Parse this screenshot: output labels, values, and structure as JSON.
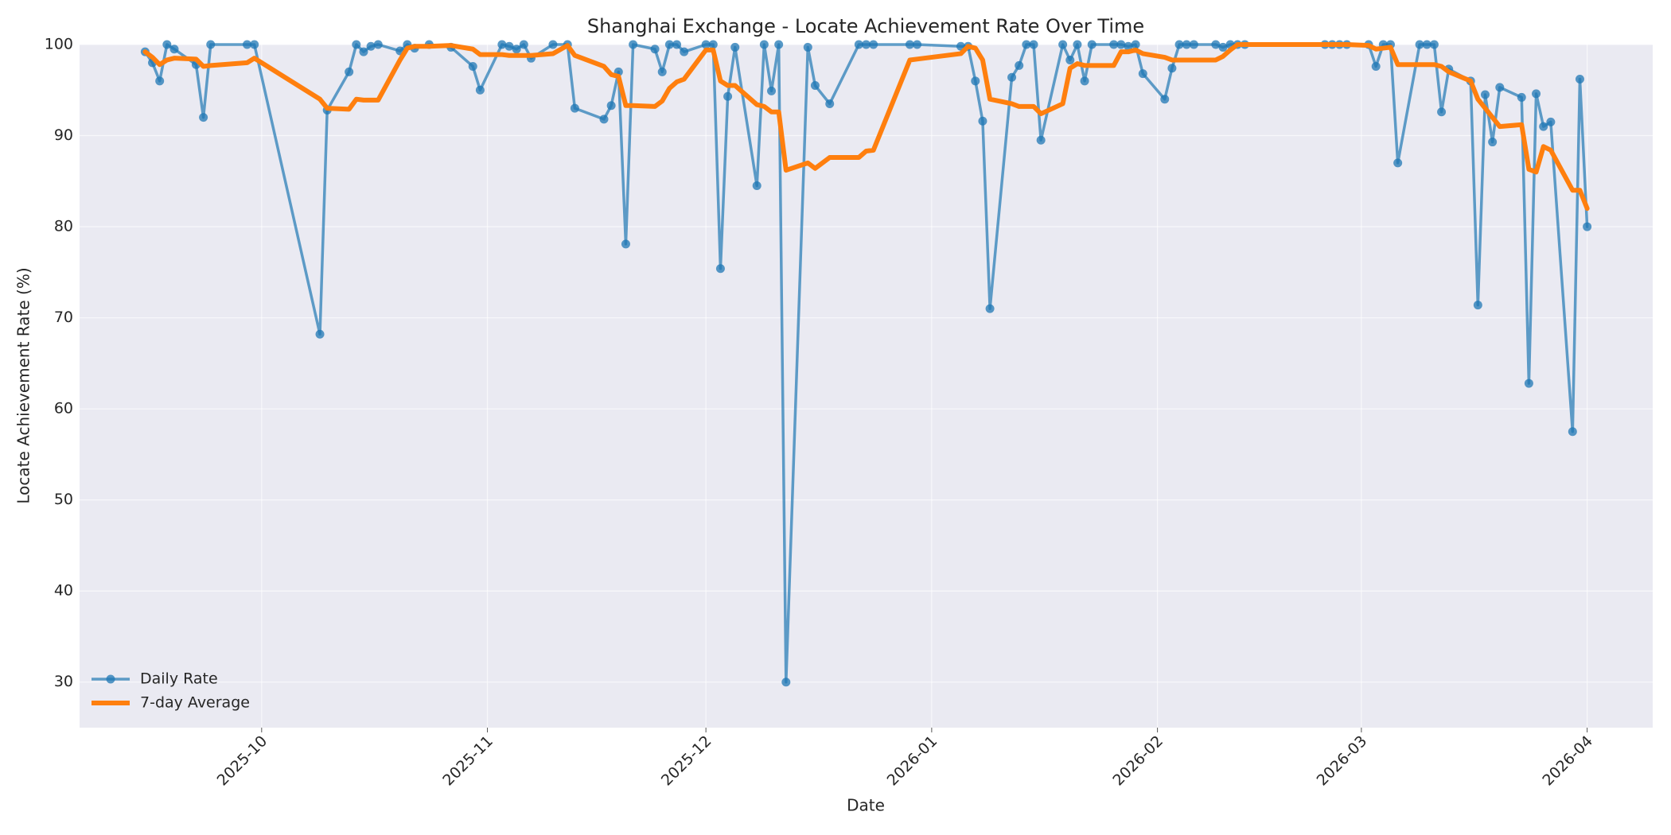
{
  "chart_data": {
    "type": "line",
    "title": "Shanghai Exchange - Locate Achievement Rate Over Time",
    "x_label": "Date",
    "y_label": "Locate Achievement Rate (%)",
    "x": [
      "2025-09-15",
      "2025-09-16",
      "2025-09-17",
      "2025-09-18",
      "2025-09-19",
      "2025-09-22",
      "2025-09-23",
      "2025-09-24",
      "2025-09-29",
      "2025-09-30",
      "2025-10-09",
      "2025-10-10",
      "2025-10-13",
      "2025-10-14",
      "2025-10-15",
      "2025-10-16",
      "2025-10-17",
      "2025-10-20",
      "2025-10-21",
      "2025-10-22",
      "2025-10-24",
      "2025-10-27",
      "2025-10-30",
      "2025-10-31",
      "2025-11-03",
      "2025-11-04",
      "2025-11-05",
      "2025-11-06",
      "2025-11-07",
      "2025-11-10",
      "2025-11-12",
      "2025-11-13",
      "2025-11-17",
      "2025-11-18",
      "2025-11-19",
      "2025-11-20",
      "2025-11-21",
      "2025-11-24",
      "2025-11-25",
      "2025-11-26",
      "2025-11-27",
      "2025-11-28",
      "2025-12-01",
      "2025-12-02",
      "2025-12-03",
      "2025-12-04",
      "2025-12-05",
      "2025-12-08",
      "2025-12-09",
      "2025-12-10",
      "2025-12-11",
      "2025-12-12",
      "2025-12-15",
      "2025-12-16",
      "2025-12-18",
      "2025-12-22",
      "2025-12-23",
      "2025-12-24",
      "2025-12-29",
      "2025-12-30",
      "2026-01-05",
      "2026-01-06",
      "2026-01-07",
      "2026-01-08",
      "2026-01-09",
      "2026-01-12",
      "2026-01-13",
      "2026-01-14",
      "2026-01-15",
      "2026-01-16",
      "2026-01-19",
      "2026-01-20",
      "2026-01-21",
      "2026-01-22",
      "2026-01-23",
      "2026-01-26",
      "2026-01-27",
      "2026-01-28",
      "2026-01-29",
      "2026-01-30",
      "2026-02-02",
      "2026-02-03",
      "2026-02-04",
      "2026-02-05",
      "2026-02-06",
      "2026-02-09",
      "2026-02-10",
      "2026-02-11",
      "2026-02-12",
      "2026-02-13",
      "2026-02-24",
      "2026-02-25",
      "2026-02-26",
      "2026-02-27",
      "2026-03-02",
      "2026-03-03",
      "2026-03-04",
      "2026-03-05",
      "2026-03-06",
      "2026-03-09",
      "2026-03-10",
      "2026-03-11",
      "2026-03-12",
      "2026-03-13",
      "2026-03-16",
      "2026-03-17",
      "2026-03-18",
      "2026-03-19",
      "2026-03-20",
      "2026-03-23",
      "2026-03-24",
      "2026-03-25",
      "2026-03-26",
      "2026-03-27",
      "2026-03-30",
      "2026-03-31",
      "2026-04-01"
    ],
    "series": [
      {
        "name": "Daily Rate",
        "color": "#1f77b4",
        "marker": true,
        "values": [
          99.2,
          98.0,
          96.0,
          100,
          99.5,
          97.8,
          92.0,
          100,
          100,
          100,
          68.2,
          92.8,
          97.0,
          100,
          99.2,
          99.8,
          100,
          99.3,
          100,
          99.6,
          100,
          99.7,
          97.6,
          95.0,
          100,
          99.8,
          99.5,
          100,
          98.5,
          100,
          100,
          93.0,
          91.8,
          93.3,
          97.0,
          78.1,
          100,
          99.5,
          97.0,
          100,
          100,
          99.2,
          100,
          100,
          75.4,
          94.3,
          99.7,
          84.5,
          100,
          94.9,
          100,
          30.0,
          99.7,
          95.5,
          93.5,
          100,
          100,
          100,
          100,
          100,
          99.8,
          99.8,
          96.0,
          91.6,
          71.0,
          96.4,
          97.7,
          100,
          100,
          89.5,
          100,
          98.3,
          100,
          96.0,
          100,
          100,
          100,
          99.8,
          100,
          96.8,
          94.0,
          97.4,
          100,
          100,
          100,
          100,
          99.7,
          100,
          100,
          100,
          100,
          100,
          100,
          100,
          100,
          97.6,
          100,
          100,
          87.0,
          100,
          100,
          100,
          92.6,
          97.3,
          96.0,
          71.4,
          94.5,
          89.3,
          95.3,
          94.2,
          62.8,
          94.6,
          91.0,
          91.5,
          57.5,
          96.2,
          80.0
        ]
      },
      {
        "name": "7-day Average",
        "color": "#ff7f0e",
        "marker": false,
        "values": [
          99.2,
          98.6,
          97.8,
          98.3,
          98.5,
          98.4,
          97.6,
          97.7,
          98.0,
          98.5,
          94.0,
          93.0,
          92.9,
          94.0,
          93.9,
          93.9,
          93.9,
          98.3,
          99.6,
          99.8,
          99.8,
          99.9,
          99.5,
          98.9,
          98.9,
          98.8,
          98.8,
          98.8,
          98.8,
          99.0,
          99.9,
          98.8,
          97.6,
          96.7,
          96.5,
          93.3,
          93.3,
          93.2,
          93.8,
          95.2,
          95.9,
          96.2,
          99.4,
          99.4,
          96.0,
          95.5,
          95.5,
          93.4,
          93.2,
          92.6,
          92.6,
          86.2,
          87.0,
          86.4,
          87.6,
          87.6,
          88.3,
          88.4,
          98.3,
          98.4,
          99.0,
          99.8,
          99.6,
          98.3,
          94.0,
          93.5,
          93.2,
          93.2,
          93.2,
          92.4,
          93.5,
          97.4,
          97.9,
          97.7,
          97.7,
          97.7,
          99.2,
          99.2,
          99.4,
          99.0,
          98.6,
          98.3,
          98.3,
          98.3,
          98.3,
          98.3,
          98.7,
          99.4,
          100,
          100,
          100,
          100,
          100,
          100,
          99.9,
          99.5,
          99.6,
          99.7,
          97.8,
          97.8,
          97.8,
          97.8,
          97.6,
          97.0,
          96.0,
          94.0,
          93.0,
          92.0,
          91.0,
          91.2,
          86.3,
          86.0,
          88.8,
          88.4,
          84.0,
          84.0,
          82.0
        ]
      }
    ],
    "xlim": [
      "2025-09-06",
      "2026-04-10"
    ],
    "xticks": [
      {
        "value": "2025-10-01",
        "label": "2025-10"
      },
      {
        "value": "2025-11-01",
        "label": "2025-11"
      },
      {
        "value": "2025-12-01",
        "label": "2025-12"
      },
      {
        "value": "2026-01-01",
        "label": "2026-01"
      },
      {
        "value": "2026-02-01",
        "label": "2026-02"
      },
      {
        "value": "2026-03-01",
        "label": "2026-03"
      },
      {
        "value": "2026-04-01",
        "label": "2026-04"
      }
    ],
    "ylim": [
      25,
      100
    ],
    "yticks": [
      30,
      40,
      50,
      60,
      70,
      80,
      90,
      100
    ],
    "grid": true,
    "legend": "lower left"
  }
}
